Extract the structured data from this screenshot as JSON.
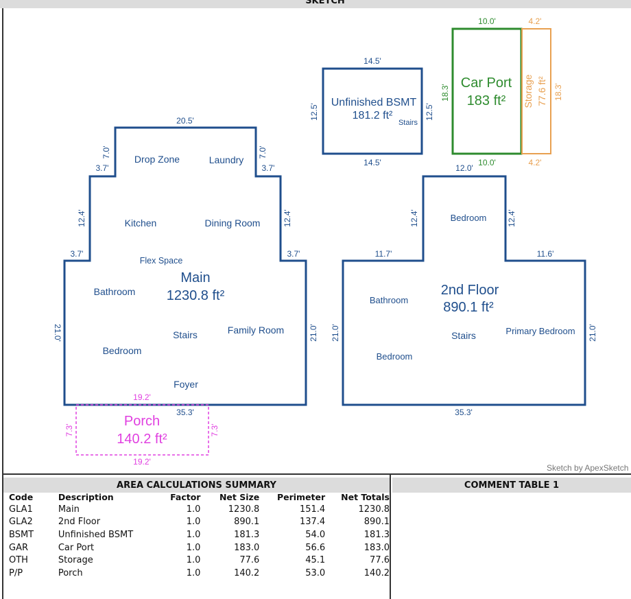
{
  "header": {
    "title": "SKETCH"
  },
  "colors": {
    "living": "#1f4e8c",
    "carport": "#2e8b2e",
    "storage": "#e8a050",
    "porch": "#e040e0"
  },
  "credit": "Sketch by ApexSketch",
  "main": {
    "name": "Main",
    "area": "1230.8 ft²",
    "dims": {
      "top": "20.5'",
      "upper_left_h": "7.0'",
      "upper_left_w": "3.7'",
      "upper_right_h": "7.0'",
      "upper_right_w": "3.7'",
      "mid_left_h": "12.4'",
      "mid_right_h": "12.4'",
      "lower_left_w": "3.7'",
      "lower_right_w": "3.7'",
      "left": "21.0'",
      "right": "21.0'",
      "bottom": "35.3'"
    },
    "rooms": {
      "drop_zone": "Drop Zone",
      "laundry": "Laundry",
      "kitchen": "Kitchen",
      "dining": "Dining Room",
      "flex": "Flex Space",
      "bathroom": "Bathroom",
      "stairs": "Stairs",
      "family": "Family Room",
      "bedroom": "Bedroom",
      "foyer": "Foyer"
    }
  },
  "porch": {
    "name": "Porch",
    "area": "140.2 ft²",
    "dims": {
      "top": "19.2'",
      "bottom": "19.2'",
      "left": "7.3'",
      "right": "7.3'"
    }
  },
  "second": {
    "name": "2nd Floor",
    "area": "890.1 ft²",
    "dims": {
      "top": "12.0'",
      "left_up": "12.4'",
      "right_up": "12.4'",
      "left_w": "11.7'",
      "right_w": "11.6'",
      "left": "21.0'",
      "right": "21.0'",
      "bottom": "35.3'"
    },
    "rooms": {
      "bedroom_top": "Bedroom",
      "bathroom": "Bathroom",
      "stairs": "Stairs",
      "primary": "Primary Bedroom",
      "bedroom": "Bedroom"
    }
  },
  "bsmt": {
    "name": "Unfinished BSMT",
    "area": "181.2 ft²",
    "stairs": "Stairs",
    "dims": {
      "top": "14.5'",
      "bottom": "14.5'",
      "left": "12.5'",
      "right": "12.5'"
    }
  },
  "carport": {
    "name": "Car Port",
    "area": "183 ft²",
    "dims": {
      "top": "10.0'",
      "bottom": "10.0'",
      "left": "18.3'"
    }
  },
  "storage": {
    "name": "Storage",
    "area": "77.6 ft²",
    "dims": {
      "top": "4.2'",
      "bottom": "4.2'",
      "right": "18.3'"
    }
  },
  "area_table": {
    "title": "AREA CALCULATIONS SUMMARY",
    "columns": [
      "Code",
      "Description",
      "Factor",
      "Net Size",
      "Perimeter",
      "Net Totals"
    ],
    "rows": [
      [
        "GLA1",
        "Main",
        "1.0",
        "1230.8",
        "151.4",
        "1230.8"
      ],
      [
        "GLA2",
        "2nd Floor",
        "1.0",
        "890.1",
        "137.4",
        "890.1"
      ],
      [
        "BSMT",
        "Unfinished BSMT",
        "1.0",
        "181.3",
        "54.0",
        "181.3"
      ],
      [
        "GAR",
        "Car Port",
        "1.0",
        "183.0",
        "56.6",
        "183.0"
      ],
      [
        "OTH",
        "Storage",
        "1.0",
        "77.6",
        "45.1",
        "77.6"
      ],
      [
        "P/P",
        "Porch",
        "1.0",
        "140.2",
        "53.0",
        "140.2"
      ]
    ]
  },
  "comment_table": {
    "title": "COMMENT TABLE 1"
  }
}
